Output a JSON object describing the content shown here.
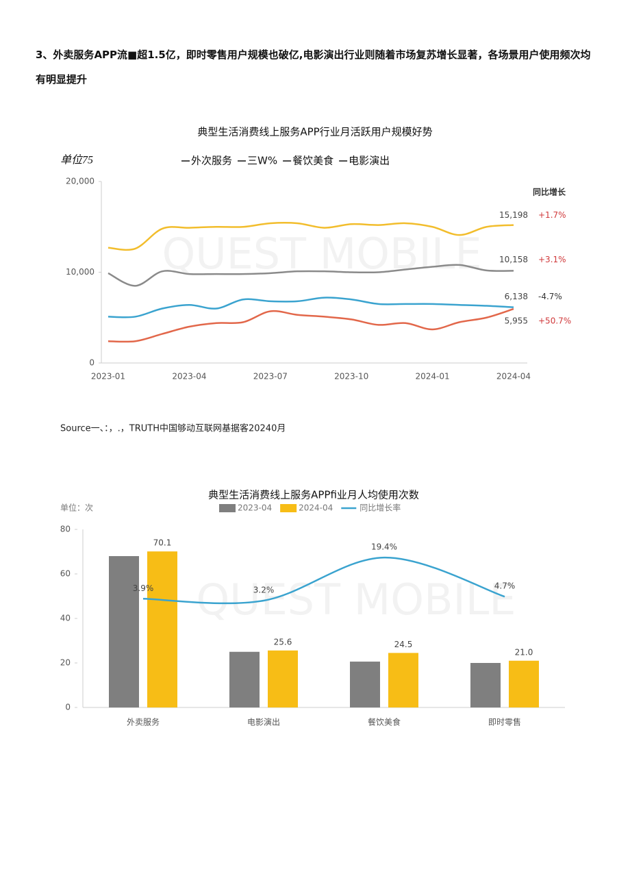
{
  "paragraph": "3、外卖服务APP流■超1.5亿，即时零售用户规模也破亿,电影演出行业则随着市场复苏增长显著，各场景用户使用频次均有明显提升",
  "source": "Source一、：，.，TRUTH中国够动互联网基据客20240月",
  "chart_data": [
    {
      "type": "line",
      "title": "典型生活消费线上服务APP行业月活跃用户规模好势",
      "unit": "单位75",
      "watermark": "QUEST MOBILE",
      "change_header": "同比增长",
      "categories": [
        "2023-01",
        null,
        null,
        "2023-04",
        null,
        null,
        "2023-07",
        null,
        null,
        "2023-10",
        null,
        null,
        "2024-01",
        null,
        null,
        "2024-04"
      ],
      "ylim": [
        0,
        20000
      ],
      "yticks": [
        0,
        {
          "value": 10000,
          "label": "10,000"
        },
        {
          "value": 20000,
          "label": "20,000"
        }
      ],
      "series": [
        {
          "name": "外次服务",
          "color": "#f2bd2c",
          "change": "+1.7%",
          "change_color": "#d0393b",
          "values": [
            12700,
            12600,
            14800,
            14900,
            15000,
            15000,
            15400,
            15400,
            14900,
            15300,
            15200,
            15400,
            15000,
            14100,
            15000,
            15198
          ],
          "value_labels": [
            null,
            null,
            null,
            null,
            null,
            null,
            null,
            null,
            null,
            null,
            null,
            null,
            null,
            null,
            null,
            "15,198"
          ]
        },
        {
          "name": "三W%",
          "color": "#8a8a8a",
          "change": "+3.1%",
          "change_color": "#d0393b",
          "values": [
            9900,
            8500,
            10100,
            9800,
            9800,
            9800,
            9900,
            10100,
            10100,
            10000,
            10000,
            10300,
            10600,
            10800,
            10200,
            10158
          ],
          "value_labels": [
            null,
            null,
            null,
            null,
            null,
            null,
            null,
            null,
            null,
            null,
            null,
            null,
            null,
            null,
            null,
            "10,158"
          ]
        },
        {
          "name": "餐饮美食",
          "color": "#3aa3cf",
          "change": "-4.7%",
          "change_color": "#333333",
          "values": [
            5100,
            5100,
            6000,
            6400,
            6000,
            7000,
            6800,
            6800,
            7200,
            7000,
            6500,
            6500,
            6500,
            6400,
            6300,
            6138
          ],
          "value_labels": [
            null,
            null,
            null,
            null,
            null,
            null,
            null,
            null,
            null,
            null,
            null,
            null,
            null,
            null,
            null,
            "6,138"
          ]
        },
        {
          "name": "电影演出",
          "color": "#e2674a",
          "change": "+50.7%",
          "change_color": "#d0393b",
          "values": [
            2400,
            2400,
            3200,
            4000,
            4400,
            4500,
            5700,
            5300,
            5100,
            4800,
            4200,
            4400,
            3700,
            4500,
            5000,
            5955
          ],
          "value_labels": [
            null,
            null,
            null,
            null,
            null,
            null,
            null,
            null,
            null,
            null,
            null,
            null,
            null,
            null,
            null,
            "5,955"
          ]
        }
      ]
    },
    {
      "type": "bar",
      "title": "典型生活消费线上服务APPfi业月人均使用次数",
      "unit": "单位：次",
      "watermark": "QUEST MOBILE",
      "categories": [
        "外卖服务",
        "电影演出",
        "餐饮美食",
        "即时零售"
      ],
      "ylim": [
        0,
        80
      ],
      "yticks": [
        0,
        20,
        40,
        60,
        80
      ],
      "y2lim": [
        -37,
        30
      ],
      "series": [
        {
          "name": "2023-04",
          "type": "bar",
          "color": "#7f7f7f",
          "values": [
            68,
            25,
            20.6,
            20
          ]
        },
        {
          "name": "2024-04",
          "type": "bar",
          "color": "#f7bd16",
          "values": [
            70.1,
            25.6,
            24.5,
            21.0
          ],
          "value_labels": [
            "70.1",
            "25.6",
            "24.5",
            "21.0"
          ]
        },
        {
          "name": "同比增长率",
          "type": "line",
          "axis": "y2",
          "color": "#3aa3cf",
          "values": [
            3.9,
            3.2,
            19.4,
            4.7
          ],
          "value_labels": [
            "3.9%",
            "3.2%",
            "19.4%",
            "4.7%"
          ]
        }
      ]
    }
  ]
}
